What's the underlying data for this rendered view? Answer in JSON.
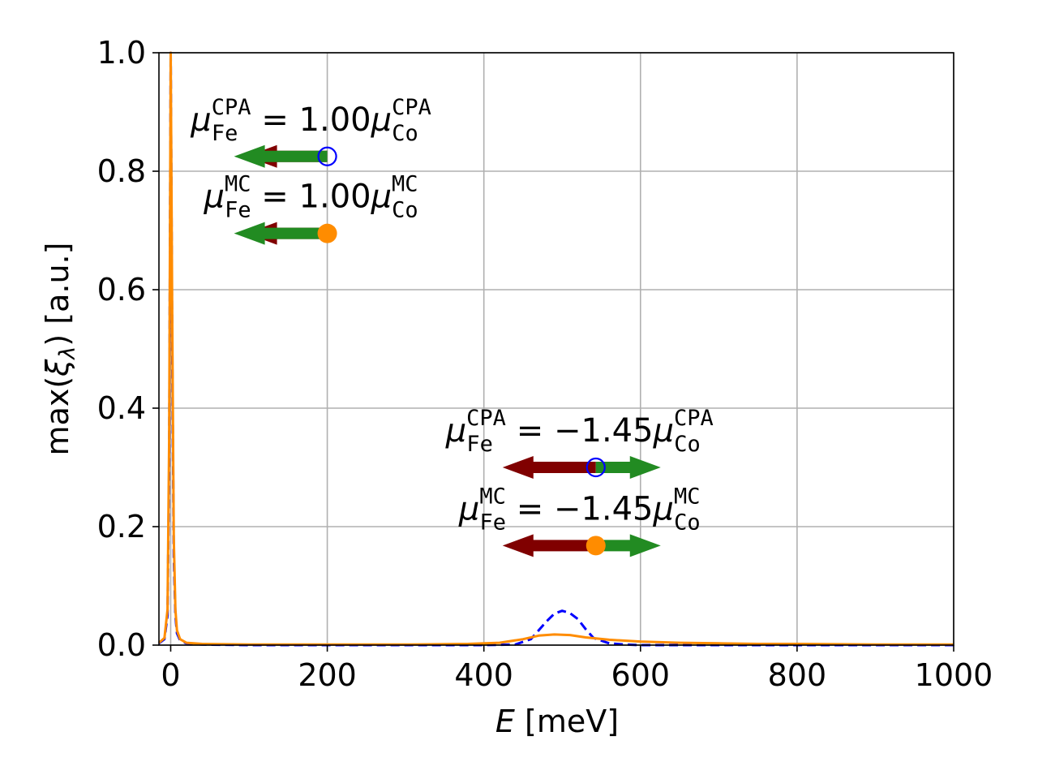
{
  "chart_data": {
    "type": "line",
    "title": "",
    "xlabel_var": "E",
    "xlabel_unit": " [meV]",
    "ylabel_pre": "max(",
    "ylabel_var": "ξ",
    "ylabel_sub": "λ",
    "ylabel_post": ") [a.u.]",
    "xlim": [
      -15,
      1000
    ],
    "ylim": [
      0,
      1.0
    ],
    "xticks": [
      "0",
      "200",
      "400",
      "600",
      "800",
      "1000"
    ],
    "xtick_values": [
      0,
      200,
      400,
      600,
      800,
      1000
    ],
    "yticks": [
      "0.0",
      "0.2",
      "0.4",
      "0.6",
      "0.8",
      "1.0"
    ],
    "ytick_values": [
      0,
      0.2,
      0.4,
      0.6,
      0.8,
      1.0
    ],
    "grid": true,
    "series": [
      {
        "style": "dashed",
        "color": "#0000ff",
        "x": [
          -15,
          -8,
          -4,
          -2,
          0,
          2,
          4,
          6,
          8,
          12,
          20,
          40,
          100,
          200,
          300,
          400,
          440,
          460,
          470,
          480,
          490,
          500,
          510,
          520,
          530,
          540,
          560,
          580,
          600,
          700,
          800,
          1000
        ],
        "y": [
          0.003,
          0.01,
          0.05,
          0.3,
          1.0,
          0.5,
          0.15,
          0.05,
          0.02,
          0.008,
          0.003,
          0.001,
          0.0,
          0.0,
          0.0,
          0.0,
          0.001,
          0.01,
          0.025,
          0.04,
          0.053,
          0.058,
          0.054,
          0.044,
          0.027,
          0.012,
          0.003,
          0.001,
          0.0,
          0.0,
          0.0,
          0.0
        ]
      },
      {
        "style": "solid",
        "color": "#ff8c00",
        "x": [
          -15,
          -8,
          -4,
          -2,
          0,
          2,
          4,
          6,
          8,
          12,
          20,
          40,
          100,
          200,
          300,
          380,
          420,
          450,
          470,
          490,
          510,
          530,
          560,
          600,
          650,
          700,
          750,
          800,
          900,
          1000
        ],
        "y": [
          0.004,
          0.012,
          0.06,
          0.35,
          1.0,
          0.55,
          0.18,
          0.06,
          0.025,
          0.01,
          0.004,
          0.002,
          0.001,
          0.001,
          0.001,
          0.002,
          0.004,
          0.01,
          0.016,
          0.018,
          0.017,
          0.013,
          0.009,
          0.006,
          0.004,
          0.003,
          0.002,
          0.002,
          0.001,
          0.001
        ]
      }
    ],
    "annotations": [
      {
        "line1": {
          "base": "μ",
          "sub": "Fe",
          "sup": "CPA",
          "mid": " = 1.00",
          "base2": "μ",
          "sub2": "Co",
          "sup2": "CPA"
        },
        "marker": "open-circle",
        "marker_color": "#0000ff",
        "anchor": [
          200,
          0.825
        ],
        "arrows": [
          {
            "color": "#800000",
            "length": 100
          },
          {
            "color": "#228b22",
            "length": 115
          }
        ]
      },
      {
        "line1": {
          "base": "μ",
          "sub": "Fe",
          "sup": "MC",
          "mid": " = 1.00",
          "base2": "μ",
          "sub2": "Co",
          "sup2": "MC"
        },
        "marker": "filled-circle",
        "marker_color": "#ff8c00",
        "anchor": [
          200,
          0.695
        ],
        "arrows": [
          {
            "color": "#800000",
            "length": 100
          },
          {
            "color": "#228b22",
            "length": 115
          }
        ]
      },
      {
        "line1": {
          "base": "μ",
          "sub": "Fe",
          "sup": "CPA",
          "mid": " = −1.45",
          "base2": "μ",
          "sub2": "Co",
          "sup2": "CPA"
        },
        "marker": "open-circle",
        "marker_color": "#0000ff",
        "anchor": [
          543,
          0.3
        ],
        "arrows": [
          {
            "color": "#800000",
            "length": 115
          },
          {
            "color": "#228b22",
            "length": -80
          }
        ]
      },
      {
        "line1": {
          "base": "μ",
          "sub": "Fe",
          "sup": "MC",
          "mid": " = −1.45",
          "base2": "μ",
          "sub2": "Co",
          "sup2": "MC"
        },
        "marker": "filled-circle",
        "marker_color": "#ff8c00",
        "anchor": [
          543,
          0.168
        ],
        "arrows": [
          {
            "color": "#800000",
            "length": 115
          },
          {
            "color": "#228b22",
            "length": -80
          }
        ]
      }
    ]
  }
}
